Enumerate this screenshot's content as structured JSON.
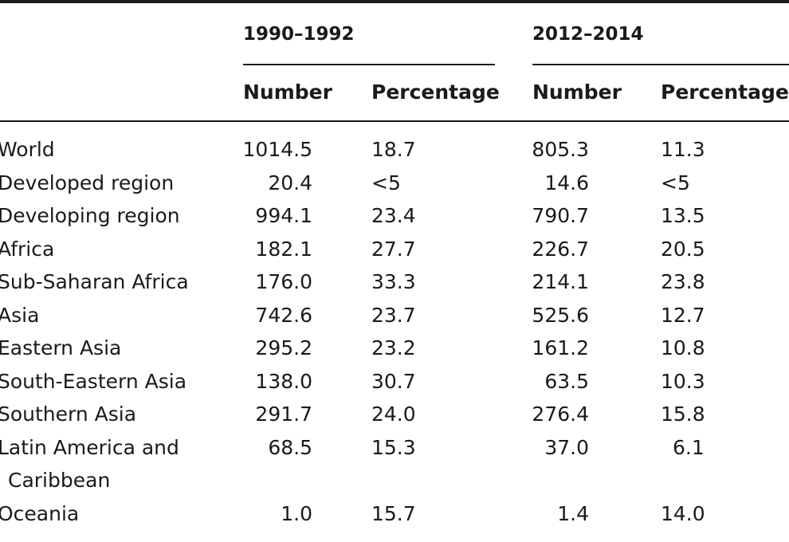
{
  "table": {
    "periods": [
      "1990–1992",
      "2012–2014"
    ],
    "column_headers": [
      "Number",
      "Percentage",
      "Number",
      "Percentage"
    ],
    "rows": [
      {
        "region": "World",
        "cells": [
          "1014.5",
          "18.7",
          "805.3",
          "11.3"
        ]
      },
      {
        "region": "Developed region",
        "cells": [
          "20.4",
          "<5",
          "14.6",
          "<5"
        ]
      },
      {
        "region": "Developing region",
        "cells": [
          "994.1",
          "23.4",
          "790.7",
          "13.5"
        ]
      },
      {
        "region": "Africa",
        "cells": [
          "182.1",
          "27.7",
          "226.7",
          "20.5"
        ]
      },
      {
        "region": "Sub-Saharan Africa",
        "cells": [
          "176.0",
          "33.3",
          "214.1",
          "23.8"
        ]
      },
      {
        "region": "Asia",
        "cells": [
          "742.6",
          "23.7",
          "525.6",
          "12.7"
        ]
      },
      {
        "region": "Eastern Asia",
        "cells": [
          "295.2",
          "23.2",
          "161.2",
          "10.8"
        ]
      },
      {
        "region": "South-Eastern Asia",
        "cells": [
          "138.0",
          "30.7",
          "63.5",
          "10.3"
        ]
      },
      {
        "region": "Southern Asia",
        "cells": [
          "291.7",
          "24.0",
          "276.4",
          "15.8"
        ]
      },
      {
        "region": "Latin America and",
        "region_line2": "Caribbean",
        "cells": [
          "68.5",
          "15.3",
          "37.0",
          "6.1"
        ]
      },
      {
        "region": "Oceania",
        "cells": [
          "1.0",
          "15.7",
          "1.4",
          "14.0"
        ]
      }
    ]
  }
}
